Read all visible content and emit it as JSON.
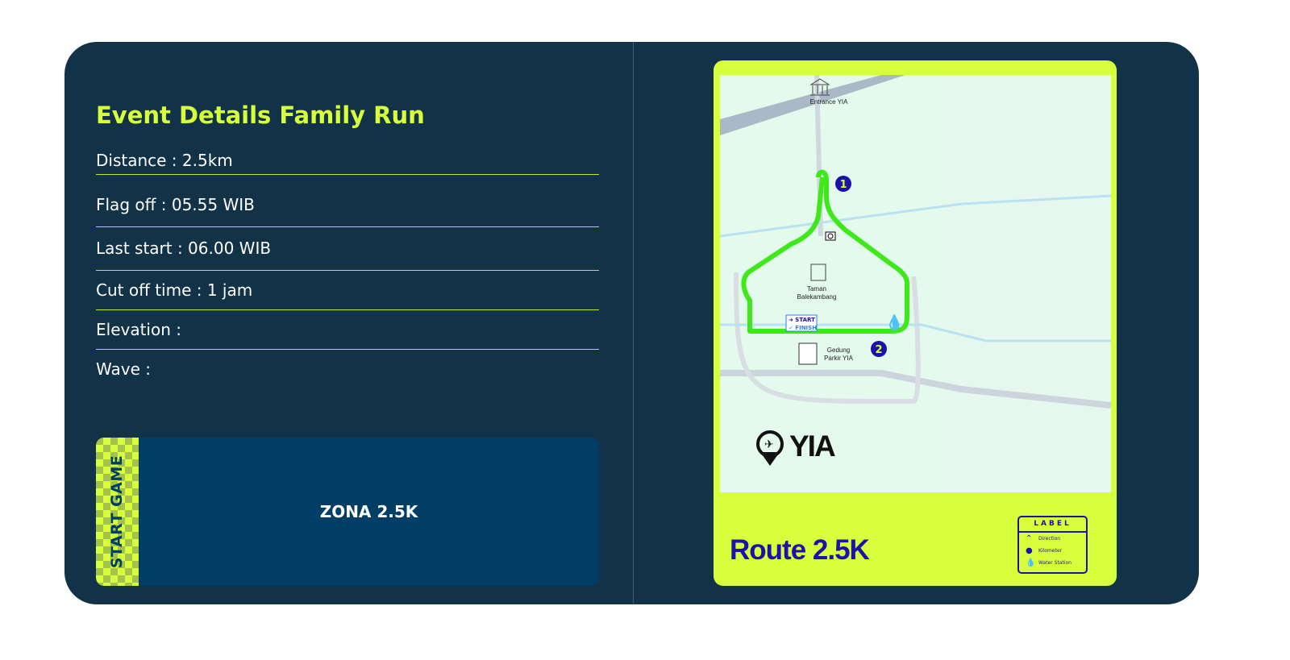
{
  "event": {
    "title": "Event Details Family Run",
    "details": [
      "Distance : 2.5km",
      "Flag off : 05.55 WIB",
      "Last start : 06.00 WIB",
      "Cut off time : 1 jam",
      "Elevation :",
      "Wave :"
    ]
  },
  "zone": {
    "side_label": "START GAME",
    "label": "ZONA 2.5K"
  },
  "map": {
    "entrance": "Entrance YIA",
    "park": "Taman\nBalekambang",
    "parking": "Gedung\nParkir YIA",
    "start": "➜ START",
    "finish": "✓ FINISH",
    "km1": "1",
    "km2": "2",
    "logo": "YIA",
    "route_title": "Route 2.5K",
    "legend": {
      "title": "LABEL",
      "items": [
        "Direction",
        "Kilometer",
        "Water Station"
      ]
    }
  },
  "colors": {
    "background": "#113247",
    "accent": "#d8ff3c",
    "zone": "#003e66",
    "route": "#3ee81a",
    "brand_blue": "#1b12a8"
  }
}
